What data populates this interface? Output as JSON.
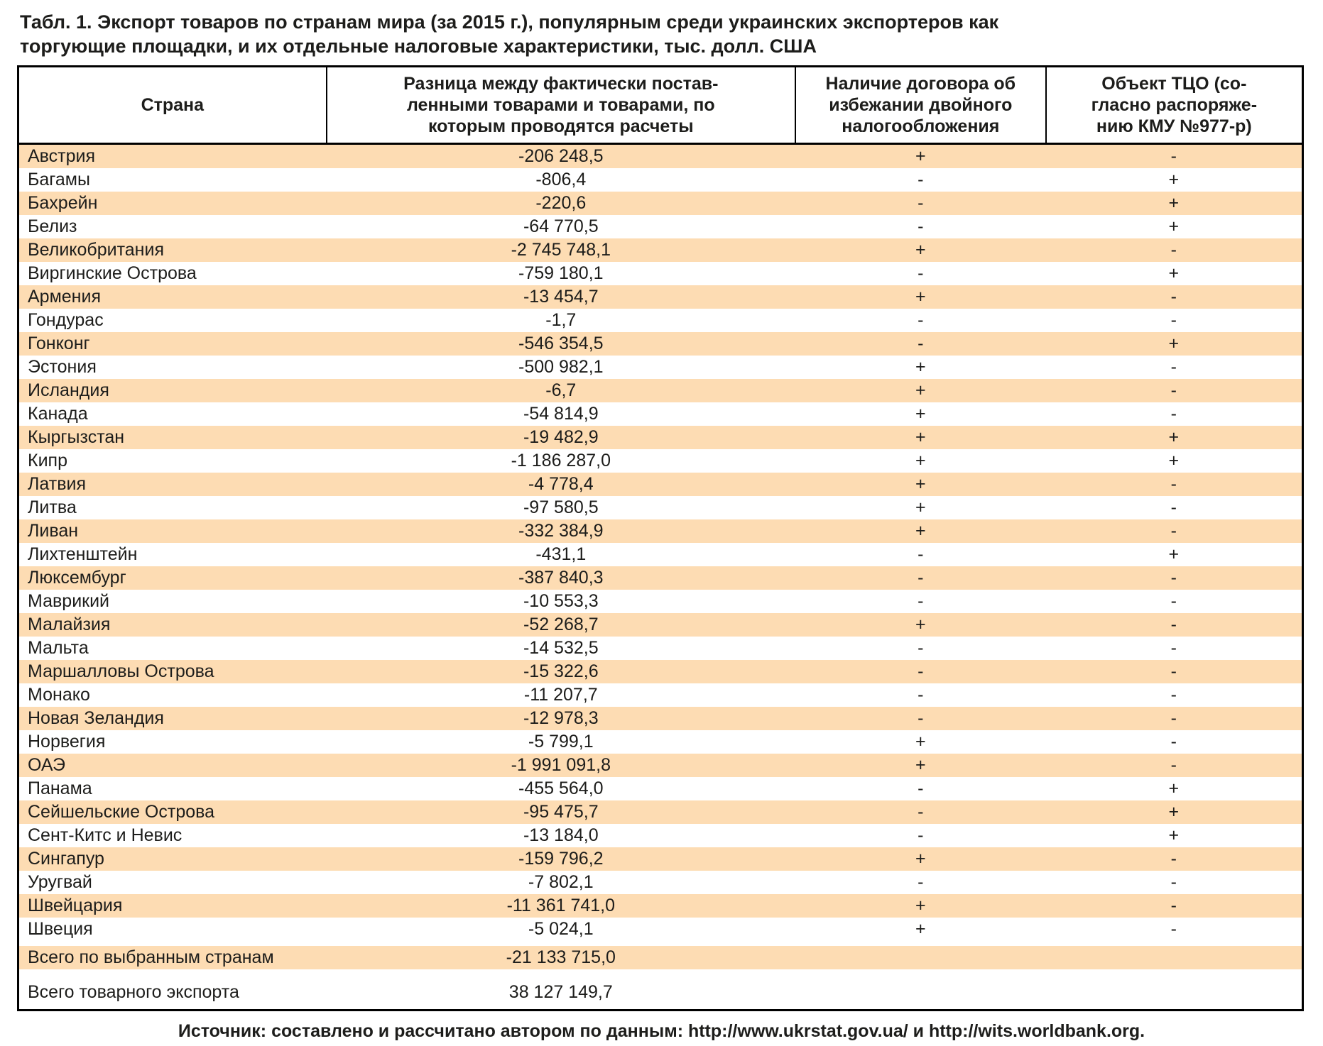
{
  "title": "Табл. 1. Экспорт товаров по странам мира (за 2015 г.), популярным среди украинских экспортеров как\nторгующие площадки, и их отдельные налоговые характеристики, тыс. долл. США",
  "source": "Источник: составлено и рассчитано автором по данным: http://www.ukrstat.gov.ua/ и http://wits.worldbank.org.",
  "colors": {
    "stripe": "#fddcb3",
    "border": "#000000",
    "text": "#1d1d1b"
  },
  "table": {
    "headers": [
      "Страна",
      "Разница между фактически постав-\nленными товарами и товарами, по\nкоторым проводятся расчеты",
      "Наличие договора об\nизбежании двойного\nналогообложения",
      "Объект ТЦО (со-\nгласно распоряже-\nнию КМУ №977-р)"
    ],
    "rows": [
      {
        "country": "Австрия",
        "difference": "-206 248,5",
        "treaty": "+",
        "tco": "-"
      },
      {
        "country": "Багамы",
        "difference": "-806,4",
        "treaty": "-",
        "tco": "+"
      },
      {
        "country": "Бахрейн",
        "difference": "-220,6",
        "treaty": "-",
        "tco": "+"
      },
      {
        "country": "Белиз",
        "difference": "-64 770,5",
        "treaty": "-",
        "tco": "+"
      },
      {
        "country": "Великобритания",
        "difference": "-2 745 748,1",
        "treaty": "+",
        "tco": "-"
      },
      {
        "country": "Виргинские Острова",
        "difference": "-759 180,1",
        "treaty": "-",
        "tco": "+"
      },
      {
        "country": "Армения",
        "difference": "-13 454,7",
        "treaty": "+",
        "tco": "-"
      },
      {
        "country": "Гондурас",
        "difference": "-1,7",
        "treaty": "-",
        "tco": "-"
      },
      {
        "country": "Гонконг",
        "difference": "-546 354,5",
        "treaty": "-",
        "tco": "+"
      },
      {
        "country": "Эстония",
        "difference": "-500 982,1",
        "treaty": "+",
        "tco": "-"
      },
      {
        "country": "Исландия",
        "difference": "-6,7",
        "treaty": "+",
        "tco": "-"
      },
      {
        "country": "Канада",
        "difference": "-54 814,9",
        "treaty": "+",
        "tco": "-"
      },
      {
        "country": "Кыргызстан",
        "difference": "-19 482,9",
        "treaty": "+",
        "tco": "+"
      },
      {
        "country": "Кипр",
        "difference": "-1 186 287,0",
        "treaty": "+",
        "tco": "+"
      },
      {
        "country": "Латвия",
        "difference": "-4 778,4",
        "treaty": "+",
        "tco": "-"
      },
      {
        "country": "Литва",
        "difference": "-97 580,5",
        "treaty": "+",
        "tco": "-"
      },
      {
        "country": "Ливан",
        "difference": "-332 384,9",
        "treaty": "+",
        "tco": "-"
      },
      {
        "country": "Лихтенштейн",
        "difference": "-431,1",
        "treaty": "-",
        "tco": "+"
      },
      {
        "country": "Люксембург",
        "difference": "-387 840,3",
        "treaty": "-",
        "tco": "-"
      },
      {
        "country": "Маврикий",
        "difference": "-10 553,3",
        "treaty": "-",
        "tco": "-"
      },
      {
        "country": "Малайзия",
        "difference": "-52 268,7",
        "treaty": "+",
        "tco": "-"
      },
      {
        "country": "Мальта",
        "difference": "-14 532,5",
        "treaty": "-",
        "tco": "-"
      },
      {
        "country": "Маршалловы Острова",
        "difference": "-15 322,6",
        "treaty": "-",
        "tco": "-"
      },
      {
        "country": "Монако",
        "difference": "-11 207,7",
        "treaty": "-",
        "tco": "-"
      },
      {
        "country": "Новая Зеландия",
        "difference": "-12 978,3",
        "treaty": "-",
        "tco": "-"
      },
      {
        "country": "Норвегия",
        "difference": "-5 799,1",
        "treaty": "+",
        "tco": "-"
      },
      {
        "country": "ОАЭ",
        "difference": "-1 991 091,8",
        "treaty": "+",
        "tco": "-"
      },
      {
        "country": "Панама",
        "difference": "-455 564,0",
        "treaty": "-",
        "tco": "+"
      },
      {
        "country": "Сейшельские Острова",
        "difference": "-95 475,7",
        "treaty": "-",
        "tco": "+"
      },
      {
        "country": "Сент-Китс и Невис",
        "difference": "-13 184,0",
        "treaty": "-",
        "tco": "+"
      },
      {
        "country": "Сингапур",
        "difference": "-159 796,2",
        "treaty": "+",
        "tco": "-"
      },
      {
        "country": "Уругвай",
        "difference": "-7 802,1",
        "treaty": "-",
        "tco": "-"
      },
      {
        "country": "Швейцария",
        "difference": "-11 361 741,0",
        "treaty": "+",
        "tco": "-"
      },
      {
        "country": "Швеция",
        "difference": "-5 024,1",
        "treaty": "+",
        "tco": "-"
      }
    ],
    "totals": [
      {
        "country": "Всего по выбранным странам",
        "difference": "-21 133 715,0",
        "treaty": "",
        "tco": ""
      },
      {
        "country": "Всего товарного экспорта",
        "difference": "38 127 149,7",
        "treaty": "",
        "tco": ""
      }
    ]
  }
}
